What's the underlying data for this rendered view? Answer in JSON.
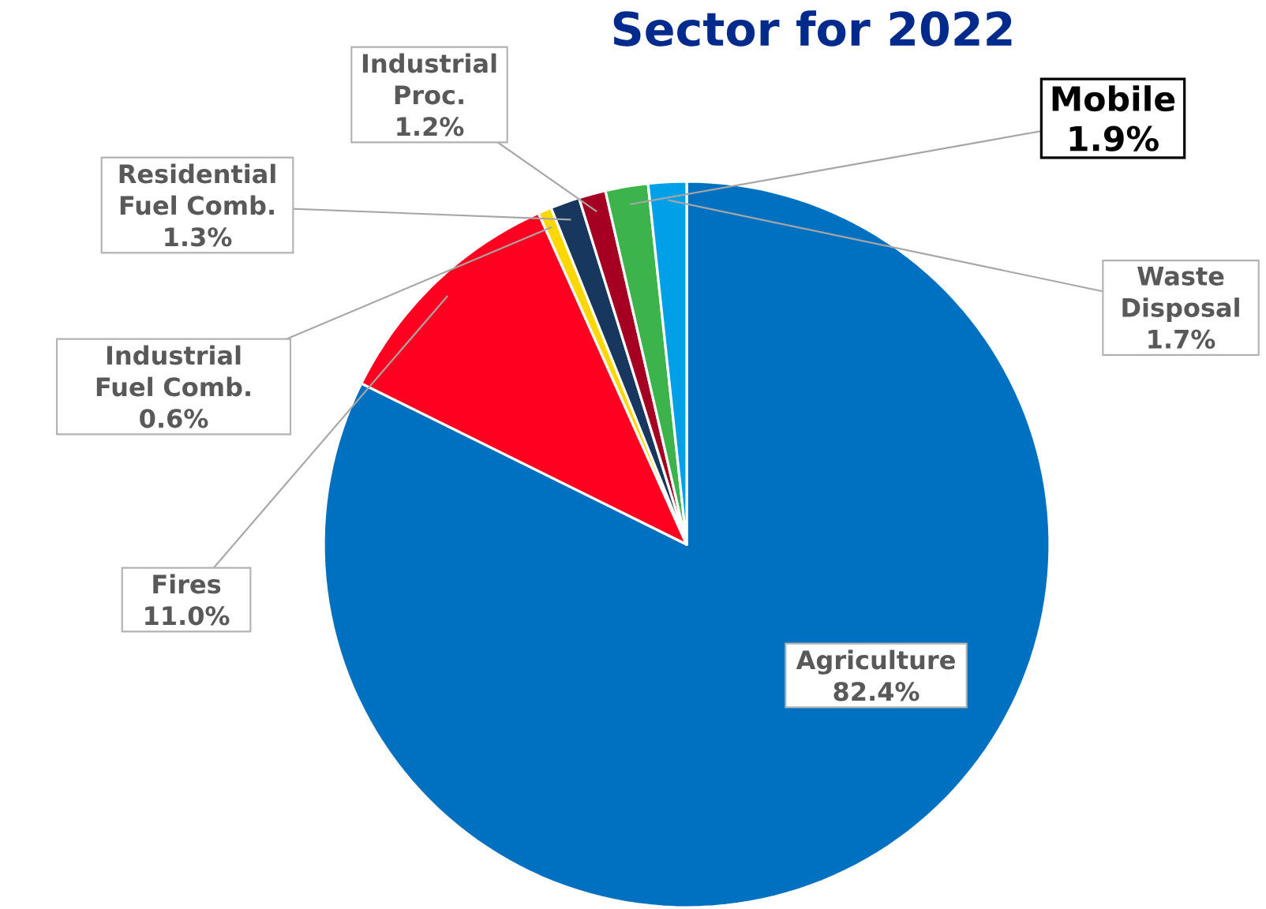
{
  "chart_data": {
    "type": "pie",
    "title": "Sector for 2022",
    "categories": [
      "Agriculture",
      "Fires",
      "Industrial Fuel Comb.",
      "Residential Fuel Comb.",
      "Industrial Proc.",
      "Mobile",
      "Waste Disposal"
    ],
    "values": [
      82.4,
      11.0,
      0.6,
      1.3,
      1.2,
      1.9,
      1.7
    ],
    "value_labels": [
      "82.4%",
      "11.0%",
      "0.6%",
      "1.3%",
      "1.2%",
      "1.9%",
      "1.7%"
    ],
    "colors": [
      "#0070c0",
      "#ff0020",
      "#ffd700",
      "#17375e",
      "#a50021",
      "#3cb44b",
      "#00a0e9"
    ]
  }
}
